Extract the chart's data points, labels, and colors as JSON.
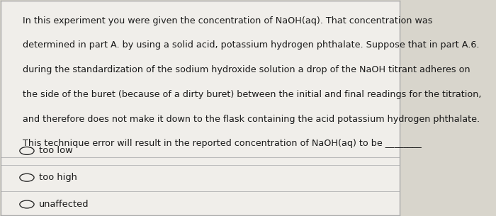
{
  "bg_color": "#d8d5cc",
  "box_color": "#f0eeea",
  "border_color": "#aaaaaa",
  "paragraph_text": "In this experiment you were given the concentration of NaOH(aq). That concentration was\ndetermined in part A. by using a solid acid, potassium hydrogen phthalate. Suppose that in part A.6.\nduring the standardization of the sodium hydroxide solution a drop of the NaOH titrant adheres on\nthe side of the buret (because of a dirty buret) between the initial and final readings for the titration,\nand therefore does not make it down to the flask containing the acid potassium hydrogen phthalate.\nThis technique error will result in the reported concentration of NaOH(aq) to be ________",
  "options": [
    "too low",
    "too high",
    "unaffected"
  ],
  "text_color": "#1a1a1a",
  "font_size_para": 9.2,
  "font_size_opt": 9.4,
  "line_color": "#bbbbbb"
}
